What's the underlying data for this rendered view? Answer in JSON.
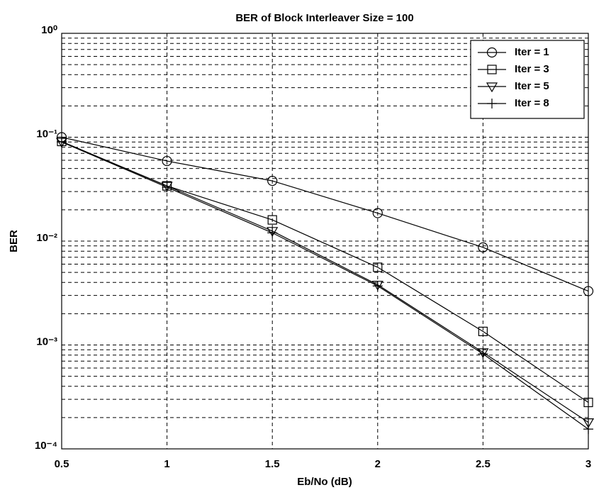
{
  "chart_data": {
    "type": "line",
    "title": "BER of Block Interleaver Size = 100",
    "x_label": "Eb/No (dB)",
    "y_label": "BER",
    "x": [
      0.5,
      1,
      1.5,
      2,
      2.5,
      3
    ],
    "series": [
      {
        "name": "Iter = 1",
        "color": "#000000",
        "marker": "circle",
        "values": [
          0.1,
          0.059,
          0.038,
          0.0186,
          0.0087,
          0.0033
        ]
      },
      {
        "name": "Iter = 3",
        "color": "#000000",
        "marker": "square",
        "values": [
          0.091,
          0.034,
          0.016,
          0.0056,
          0.00135,
          0.00028
        ]
      },
      {
        "name": "Iter = 5",
        "color": "#000000",
        "marker": "triangle-down",
        "values": [
          0.09,
          0.034,
          0.0125,
          0.0038,
          0.00085,
          0.00018
        ]
      },
      {
        "name": "Iter = 8",
        "color": "#000000",
        "marker": "plus",
        "values": [
          0.09,
          0.033,
          0.012,
          0.0037,
          0.00082,
          0.000155
        ]
      }
    ],
    "xlim": [
      0.5,
      3
    ],
    "xticks": [
      0.5,
      1,
      1.5,
      2,
      2.5,
      3
    ],
    "ylim": [
      0.0001,
      1
    ],
    "log_y": true,
    "yticks": [
      {
        "value": 0.0001,
        "label": "10⁻⁴"
      },
      {
        "value": 0.001,
        "label": "10⁻³"
      },
      {
        "value": 0.01,
        "label": "10⁻²"
      },
      {
        "value": 0.1,
        "label": "10⁻¹"
      },
      {
        "value": 1,
        "label": "10⁰"
      }
    ],
    "grid": true,
    "minor_grid": true,
    "legend": "upper right"
  }
}
